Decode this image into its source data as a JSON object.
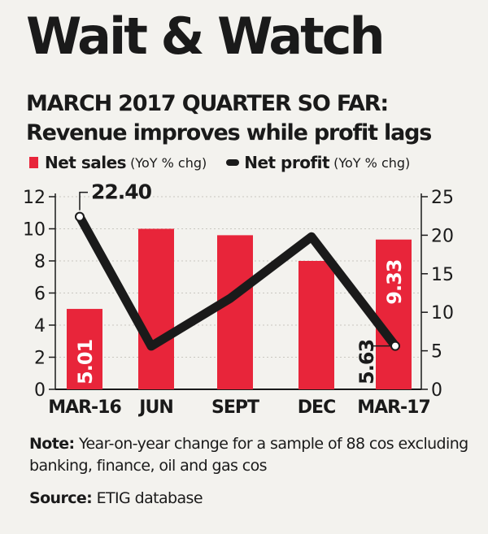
{
  "title": "Wait & Watch",
  "subtitle": {
    "line1": "MARCH 2017 QUARTER SO FAR:",
    "line2": "Revenue improves while profit lags"
  },
  "legend": {
    "sales_name": "Net sales",
    "sales_unit": "(YoY % chg)",
    "profit_name": "Net profit",
    "profit_unit": "(YoY % chg)"
  },
  "note": {
    "label": "Note:",
    "text": "Year-on-year change for a sample of 88 cos excluding banking, finance, oil and gas cos"
  },
  "source": {
    "label": "Source:",
    "text": "ETIG database"
  },
  "colors": {
    "bar": "#e8253a",
    "line": "#1a1a1a",
    "background": "#f3f2ee"
  },
  "chart_data": {
    "type": "bar",
    "categories": [
      "MAR-16",
      "JUN",
      "SEPT",
      "DEC",
      "MAR-17"
    ],
    "series": [
      {
        "name": "Net sales",
        "axis": "left",
        "chart_type": "bar",
        "values": [
          5.01,
          10.0,
          9.6,
          8.0,
          9.33
        ]
      },
      {
        "name": "Net profit",
        "axis": "right",
        "chart_type": "line",
        "values": [
          22.4,
          5.6,
          11.8,
          19.8,
          5.63
        ]
      }
    ],
    "left_axis": {
      "ylim": [
        0,
        12
      ],
      "ticks": [
        0,
        2,
        4,
        6,
        8,
        10,
        12
      ]
    },
    "right_axis": {
      "ylim": [
        0,
        25
      ],
      "ticks": [
        0,
        5,
        10,
        15,
        20,
        25
      ]
    },
    "labels": [
      {
        "series": "Net sales",
        "index": 0,
        "text": "5.01"
      },
      {
        "series": "Net sales",
        "index": 4,
        "text": "9.33"
      },
      {
        "series": "Net profit",
        "index": 0,
        "text": "22.40"
      },
      {
        "series": "Net profit",
        "index": 4,
        "text": "5.63"
      }
    ],
    "grid": true
  }
}
